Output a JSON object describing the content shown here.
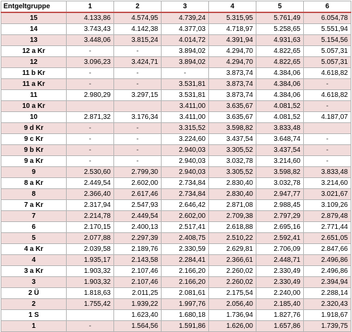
{
  "header": [
    "Entgeltgruppe",
    "1",
    "2",
    "3",
    "4",
    "5",
    "6"
  ],
  "rows": [
    [
      "15",
      "4.133,86",
      "4.574,95",
      "4.739,24",
      "5.315,95",
      "5.761,49",
      "6.054,78"
    ],
    [
      "14",
      "3.743,43",
      "4.142,38",
      "4.377,03",
      "4.718,97",
      "5.258,65",
      "5.551,94"
    ],
    [
      "13",
      "3.448,06",
      "3.815,24",
      "4.014,72",
      "4.391,94",
      "4.931,63",
      "5.154,56"
    ],
    [
      "12 a Kr",
      "-",
      "-",
      "3.894,02",
      "4.294,70",
      "4.822,65",
      "5.057,31"
    ],
    [
      "12",
      "3.096,23",
      "3.424,71",
      "3.894,02",
      "4.294,70",
      "4.822,65",
      "5.057,31"
    ],
    [
      "11 b Kr",
      "-",
      "-",
      "-",
      "3.873,74",
      "4.384,06",
      "4.618,82"
    ],
    [
      "11 a Kr",
      "-",
      "-",
      "3.531,81",
      "3.873,74",
      "4.384,06",
      "-"
    ],
    [
      "11",
      "2.980,29",
      "3.297,15",
      "3.531,81",
      "3.873,74",
      "4.384,06",
      "4.618,82"
    ],
    [
      "10 a Kr",
      "",
      "",
      "3.411,00",
      "3.635,67",
      "4.081,52",
      "-"
    ],
    [
      "10",
      "2.871,32",
      "3.176,34",
      "3.411,00",
      "3.635,67",
      "4.081,52",
      "4.187,07"
    ],
    [
      "9 d Kr",
      "-",
      "-",
      "3.315,52",
      "3.598,82",
      "3.833,48",
      ""
    ],
    [
      "9 c Kr",
      "-",
      "-",
      "3.224,60",
      "3.437,54",
      "3.648,74",
      "-"
    ],
    [
      "9 b Kr",
      "-",
      "-",
      "2.940,03",
      "3.305,52",
      "3.437,54",
      "-"
    ],
    [
      "9 a Kr",
      "-",
      "-",
      "2.940,03",
      "3.032,78",
      "3.214,60",
      "-"
    ],
    [
      "9",
      "2.530,60",
      "2.799,30",
      "2.940,03",
      "3.305,52",
      "3.598,82",
      "3.833,48"
    ],
    [
      "8 a Kr",
      "2.449,54",
      "2.602,00",
      "2.734,84",
      "2.830,40",
      "3.032,78",
      "3.214,60"
    ],
    [
      "8",
      "2.366,40",
      "2.617,46",
      "2.734,84",
      "2.830,40",
      "2.947,77",
      "3.021,67"
    ],
    [
      "7 a Kr",
      "2.317,94",
      "2.547,93",
      "2.646,42",
      "2.871,08",
      "2.988,45",
      "3.109,26"
    ],
    [
      "7",
      "2.214,78",
      "2.449,54",
      "2.602,00",
      "2.709,38",
      "2.797,29",
      "2.879,48"
    ],
    [
      "6",
      "2.170,15",
      "2.400,13",
      "2.517,41",
      "2.618,88",
      "2.695,16",
      "2.771,44"
    ],
    [
      "5",
      "2.077,88",
      "2.297,39",
      "2.408,75",
      "2.510,22",
      "2.592,41",
      "2.651,05"
    ],
    [
      "4 a Kr",
      "2.039,58",
      "2.189,76",
      "2.330,59",
      "2.629,81",
      "2.706,09",
      "2.847,66"
    ],
    [
      "4",
      "1.935,17",
      "2.143,58",
      "2.284,41",
      "2.366,61",
      "2.448,71",
      "2.496,86"
    ],
    [
      "3 a Kr",
      "1.903,32",
      "2.107,46",
      "2.166,20",
      "2.260,02",
      "2.330,49",
      "2.496,86"
    ],
    [
      "3",
      "1.903,32",
      "2.107,46",
      "2.166,20",
      "2.260,02",
      "2.330,49",
      "2.394,94"
    ],
    [
      "2 Ü",
      "1.818,63",
      "2.011,25",
      "2.081,61",
      "2.175,54",
      "2.240,00",
      "2.288,14"
    ],
    [
      "2",
      "1.755,42",
      "1.939,22",
      "1.997,76",
      "2.056,40",
      "2.185,40",
      "2.320,43"
    ],
    [
      "1 S",
      "",
      "1.623,40",
      "1.680,18",
      "1.736,94",
      "1.827,76",
      "1.918,67"
    ],
    [
      "1",
      "-",
      "1.564,56",
      "1.591,86",
      "1.626,00",
      "1.657,86",
      "1.739,75"
    ]
  ]
}
